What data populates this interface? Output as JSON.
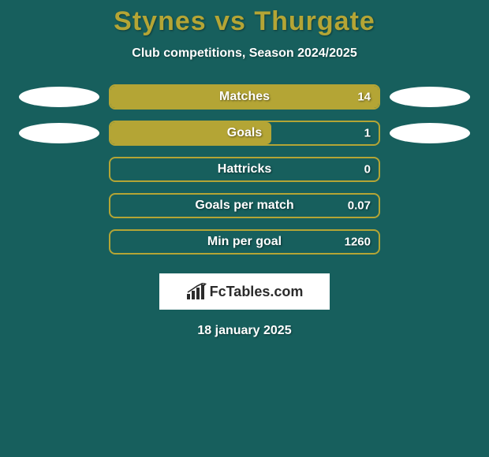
{
  "styling": {
    "background_color": "#175f5d",
    "title_color": "#b4a535",
    "subtitle_color": "#ffffff",
    "bar_border_color": "#b4a535",
    "bar_fill_color": "#b4a535",
    "bar_label_color": "#ffffff",
    "ellipse_color": "#ffffff",
    "logo_box_bg": "#ffffff",
    "logo_text_color": "#2b2b2b",
    "date_color": "#ffffff",
    "title_fontsize": 34,
    "subtitle_fontsize": 16,
    "bar_label_fontsize": 16,
    "bar_value_fontsize": 15
  },
  "title": "Stynes vs Thurgate",
  "subtitle": "Club competitions, Season 2024/2025",
  "stats": [
    {
      "label": "Matches",
      "value": "14",
      "fill_pct": 100,
      "fill_side": "center",
      "left_ellipse": true,
      "right_ellipse": true
    },
    {
      "label": "Goals",
      "value": "1",
      "fill_pct": 60,
      "fill_side": "left",
      "left_ellipse": true,
      "right_ellipse": true
    },
    {
      "label": "Hattricks",
      "value": "0",
      "fill_pct": 0,
      "fill_side": "center",
      "left_ellipse": false,
      "right_ellipse": false
    },
    {
      "label": "Goals per match",
      "value": "0.07",
      "fill_pct": 0,
      "fill_side": "center",
      "left_ellipse": false,
      "right_ellipse": false
    },
    {
      "label": "Min per goal",
      "value": "1260",
      "fill_pct": 0,
      "fill_side": "center",
      "left_ellipse": false,
      "right_ellipse": false
    }
  ],
  "logo": {
    "text": "FcTables.com"
  },
  "date": "18 january 2025"
}
